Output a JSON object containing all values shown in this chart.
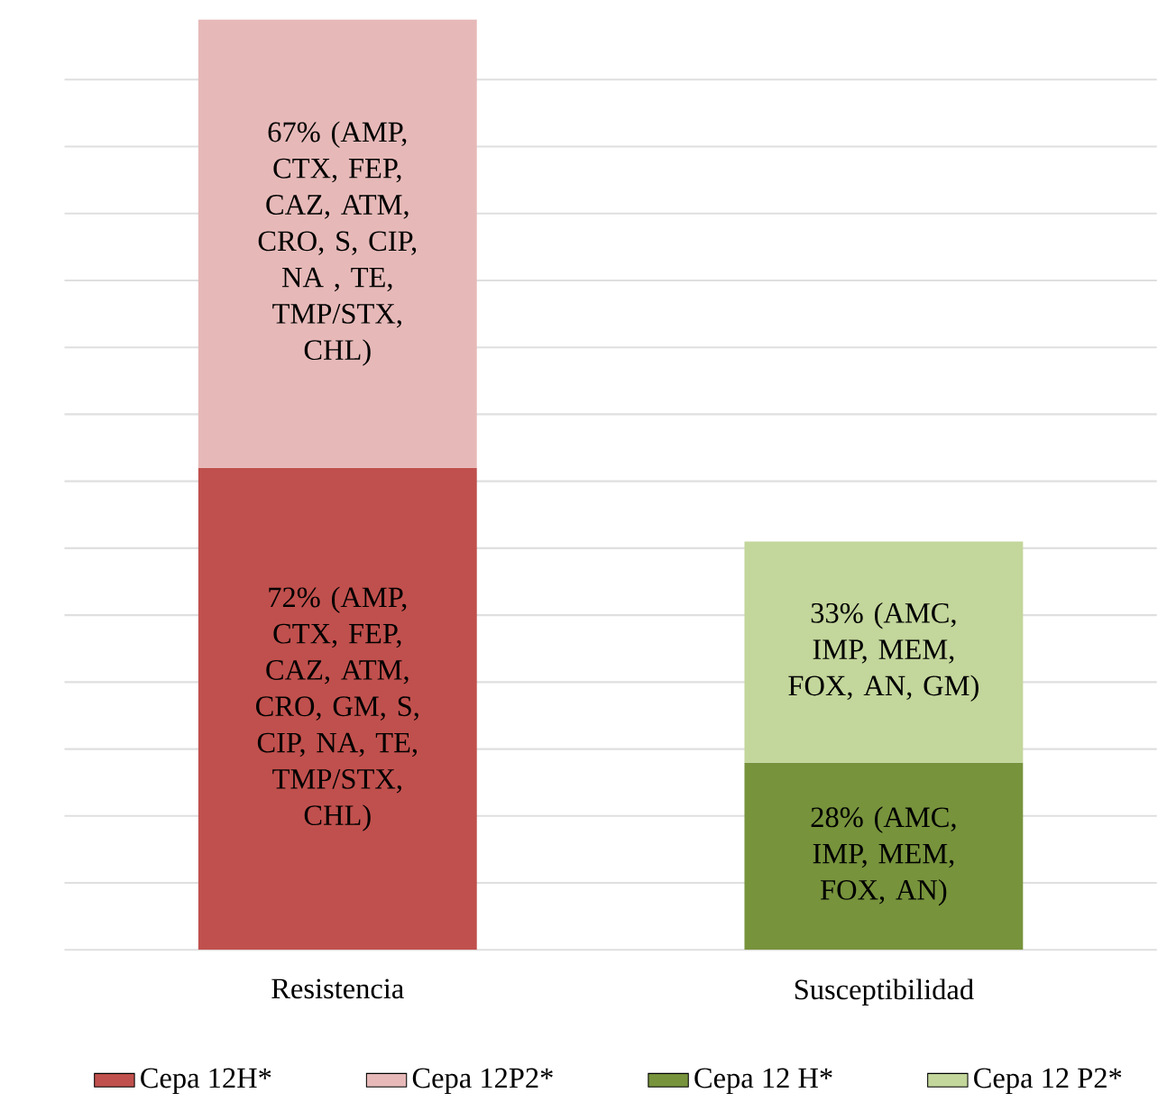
{
  "chart_data": {
    "type": "bar",
    "stacked": true,
    "tick_labels": "x",
    "categories": [
      "Resistencia",
      "Susceptibilidad"
    ],
    "series": [
      {
        "name": "Cepa 12H*",
        "color": "#c0504d",
        "values": [
          72,
          null
        ],
        "value_labels": [
          "72% (AMP, CTX, FEP, CAZ,  ATM, CRO, GM, S, CIP, NA, TE, TMP/STX, CHL)",
          null
        ]
      },
      {
        "name": "Cepa 12P2*",
        "color": "#e6b9b8",
        "values": [
          67,
          null
        ],
        "value_labels": [
          "67% (AMP, CTX, FEP, CAZ, ATM, CRO, S, CIP, NA , TE, TMP/STX, CHL)",
          null
        ]
      },
      {
        "name": "Cepa 12 H*",
        "color": "#77933c",
        "values": [
          null,
          28
        ],
        "value_labels": [
          null,
          "28% (AMC, IMP, MEM, FOX, AN)"
        ]
      },
      {
        "name": "Cepa 12 P2*",
        "color": "#c3d69b",
        "values": [
          null,
          33
        ],
        "value_labels": [
          null,
          "33% (AMC, IMP, MEM, FOX, AN, GM)"
        ]
      }
    ],
    "grid": "y",
    "legend": "bottom"
  }
}
